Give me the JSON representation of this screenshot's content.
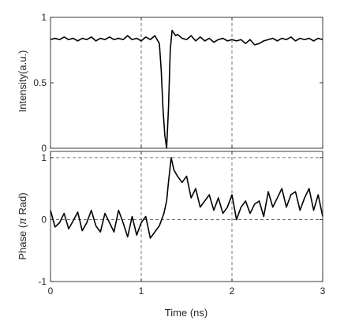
{
  "chart_data": [
    {
      "type": "line",
      "ylabel": "Intensity(a.u.)",
      "xlim": [
        0,
        3
      ],
      "ylim": [
        0,
        1
      ],
      "xticks": [
        0,
        1,
        2,
        3
      ],
      "yticks": [
        0,
        0.5,
        1
      ],
      "ytick_labels": [
        "0",
        "0.5",
        "1"
      ],
      "grid": "dashed vertical lines at x = 1 and x = 2",
      "series": [
        {
          "color": "#000000",
          "x": [
            0,
            0.05,
            0.1,
            0.15,
            0.2,
            0.25,
            0.3,
            0.35,
            0.4,
            0.45,
            0.5,
            0.55,
            0.6,
            0.65,
            0.7,
            0.75,
            0.8,
            0.85,
            0.9,
            0.95,
            1.0,
            1.05,
            1.1,
            1.15,
            1.2,
            1.22,
            1.24,
            1.26,
            1.28,
            1.3,
            1.32,
            1.34,
            1.36,
            1.38,
            1.4,
            1.45,
            1.5,
            1.55,
            1.6,
            1.65,
            1.7,
            1.75,
            1.8,
            1.85,
            1.9,
            1.95,
            2.0,
            2.05,
            2.1,
            2.15,
            2.2,
            2.25,
            2.3,
            2.35,
            2.4,
            2.45,
            2.5,
            2.55,
            2.6,
            2.65,
            2.7,
            2.75,
            2.8,
            2.85,
            2.9,
            2.95,
            3.0
          ],
          "y": [
            0.83,
            0.84,
            0.83,
            0.85,
            0.83,
            0.84,
            0.82,
            0.84,
            0.83,
            0.85,
            0.82,
            0.84,
            0.83,
            0.85,
            0.83,
            0.84,
            0.83,
            0.86,
            0.83,
            0.84,
            0.82,
            0.85,
            0.83,
            0.86,
            0.8,
            0.6,
            0.3,
            0.1,
            0.0,
            0.3,
            0.75,
            0.9,
            0.88,
            0.86,
            0.87,
            0.84,
            0.83,
            0.86,
            0.82,
            0.85,
            0.82,
            0.84,
            0.81,
            0.83,
            0.84,
            0.82,
            0.83,
            0.82,
            0.83,
            0.8,
            0.83,
            0.79,
            0.8,
            0.82,
            0.83,
            0.84,
            0.82,
            0.84,
            0.83,
            0.85,
            0.82,
            0.84,
            0.83,
            0.84,
            0.82,
            0.84,
            0.83
          ]
        }
      ]
    },
    {
      "type": "line",
      "xlabel": "Time (ns)",
      "ylabel": "Phase (π Rad)",
      "xlim": [
        0,
        3
      ],
      "ylim": [
        -1,
        1.1
      ],
      "xticks": [
        0,
        1,
        2,
        3
      ],
      "yticks": [
        -1,
        0,
        1
      ],
      "grid": "dashed horizontal lines at y = 0 and y = 1, dashed vertical lines at x = 1 and x = 2",
      "series": [
        {
          "color": "#000000",
          "x": [
            0,
            0.05,
            0.1,
            0.15,
            0.2,
            0.25,
            0.3,
            0.35,
            0.4,
            0.45,
            0.5,
            0.55,
            0.6,
            0.65,
            0.7,
            0.75,
            0.8,
            0.85,
            0.9,
            0.95,
            1.0,
            1.05,
            1.1,
            1.15,
            1.2,
            1.25,
            1.28,
            1.3,
            1.33,
            1.36,
            1.4,
            1.45,
            1.5,
            1.55,
            1.6,
            1.65,
            1.7,
            1.75,
            1.8,
            1.85,
            1.9,
            1.95,
            2.0,
            2.05,
            2.1,
            2.15,
            2.2,
            2.25,
            2.3,
            2.35,
            2.4,
            2.45,
            2.5,
            2.55,
            2.6,
            2.65,
            2.7,
            2.75,
            2.8,
            2.85,
            2.9,
            2.95,
            3.0
          ],
          "y": [
            0.15,
            -0.12,
            -0.05,
            0.1,
            -0.15,
            -0.02,
            0.12,
            -0.18,
            -0.05,
            0.15,
            -0.1,
            -0.2,
            0.1,
            -0.05,
            -0.2,
            0.15,
            -0.05,
            -0.28,
            0.05,
            -0.25,
            -0.05,
            0.05,
            -0.3,
            -0.2,
            -0.1,
            0.1,
            0.3,
            0.6,
            1.0,
            0.8,
            0.7,
            0.6,
            0.7,
            0.35,
            0.5,
            0.2,
            0.3,
            0.4,
            0.15,
            0.35,
            0.1,
            0.2,
            0.4,
            0.0,
            0.2,
            0.3,
            0.1,
            0.25,
            0.3,
            0.05,
            0.45,
            0.2,
            0.35,
            0.5,
            0.2,
            0.4,
            0.45,
            0.15,
            0.35,
            0.5,
            0.15,
            0.4,
            0.05
          ]
        }
      ]
    }
  ]
}
